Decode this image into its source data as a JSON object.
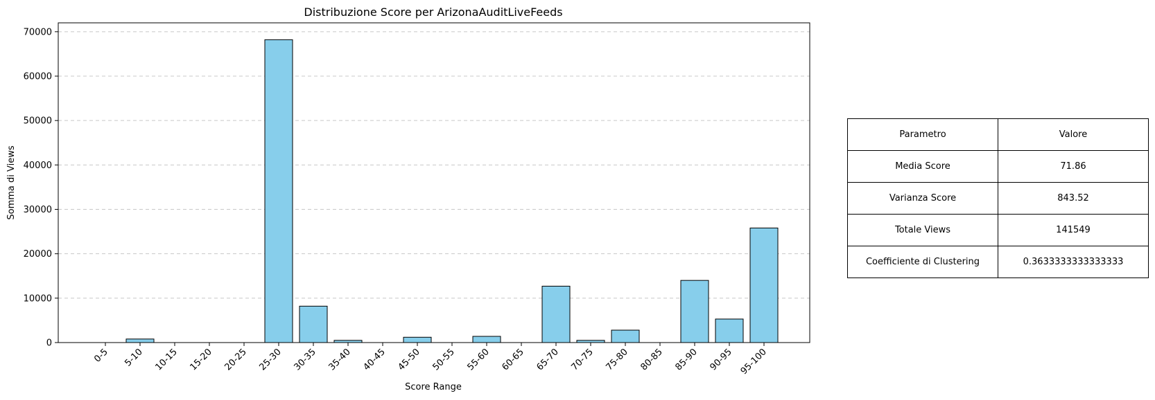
{
  "chart_data": {
    "type": "bar",
    "title": "Distribuzione Score per ArizonaAuditLiveFeeds",
    "xlabel": "Score Range",
    "ylabel": "Somma di Views",
    "categories": [
      "0-5",
      "5-10",
      "10-15",
      "15-20",
      "20-25",
      "25-30",
      "30-35",
      "35-40",
      "40-45",
      "45-50",
      "50-55",
      "55-60",
      "60-65",
      "65-70",
      "70-75",
      "75-80",
      "80-85",
      "85-90",
      "90-95",
      "95-100"
    ],
    "values": [
      0,
      800,
      0,
      0,
      0,
      68200,
      8200,
      500,
      0,
      1200,
      0,
      1400,
      0,
      12700,
      500,
      2800,
      0,
      14000,
      5300,
      25800
    ],
    "ylim": [
      0,
      72000
    ],
    "yticks": [
      0,
      10000,
      20000,
      30000,
      40000,
      50000,
      60000,
      70000
    ],
    "grid": "y-dashed",
    "bar_color": "#87CEEB",
    "bar_edge_color": "#000000"
  },
  "table": {
    "header": [
      "Parametro",
      "Valore"
    ],
    "rows": [
      [
        "Media Score",
        "71.86"
      ],
      [
        "Varianza Score",
        "843.52"
      ],
      [
        "Totale Views",
        "141549"
      ],
      [
        "Coefficiente di Clustering",
        "0.3633333333333333"
      ]
    ]
  }
}
